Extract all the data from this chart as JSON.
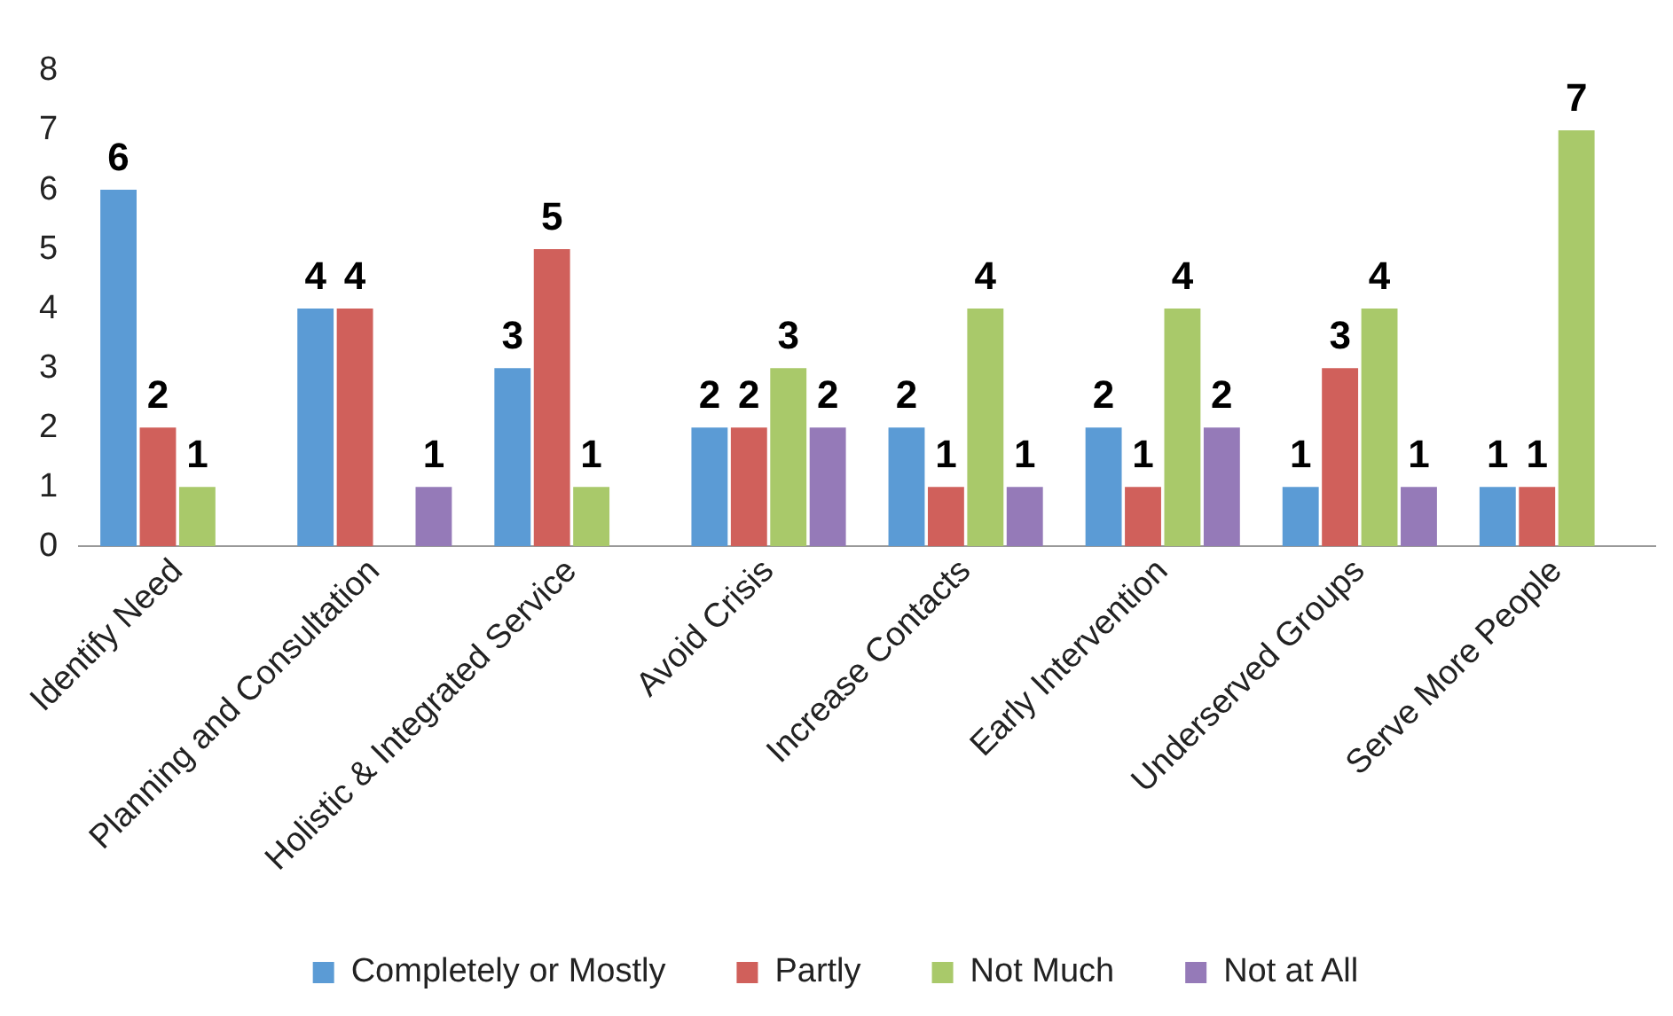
{
  "chart_data": {
    "type": "bar",
    "categories": [
      "Identify Need",
      "Planning and Consultation",
      "Holistic & Integrated Service",
      "Avoid Crisis",
      "Increase Contacts",
      "Early Intervention",
      "Underserved Groups",
      "Serve More People"
    ],
    "series": [
      {
        "name": "Completely or Mostly",
        "color": "#5b9bd5",
        "values": [
          6,
          4,
          3,
          2,
          2,
          2,
          1,
          1
        ]
      },
      {
        "name": "Partly",
        "color": "#d0605b",
        "values": [
          2,
          4,
          5,
          2,
          1,
          1,
          3,
          1
        ]
      },
      {
        "name": "Not Much",
        "color": "#a9c96a",
        "values": [
          1,
          null,
          1,
          3,
          4,
          4,
          4,
          7
        ]
      },
      {
        "name": "Not at All",
        "color": "#957ab8",
        "values": [
          null,
          1,
          null,
          2,
          1,
          2,
          1,
          null
        ]
      }
    ],
    "ylim": [
      0,
      8
    ],
    "yticks": [
      0,
      1,
      2,
      3,
      4,
      5,
      6,
      7,
      8
    ],
    "grid": false,
    "legend": "bottom",
    "data_labels": true
  }
}
